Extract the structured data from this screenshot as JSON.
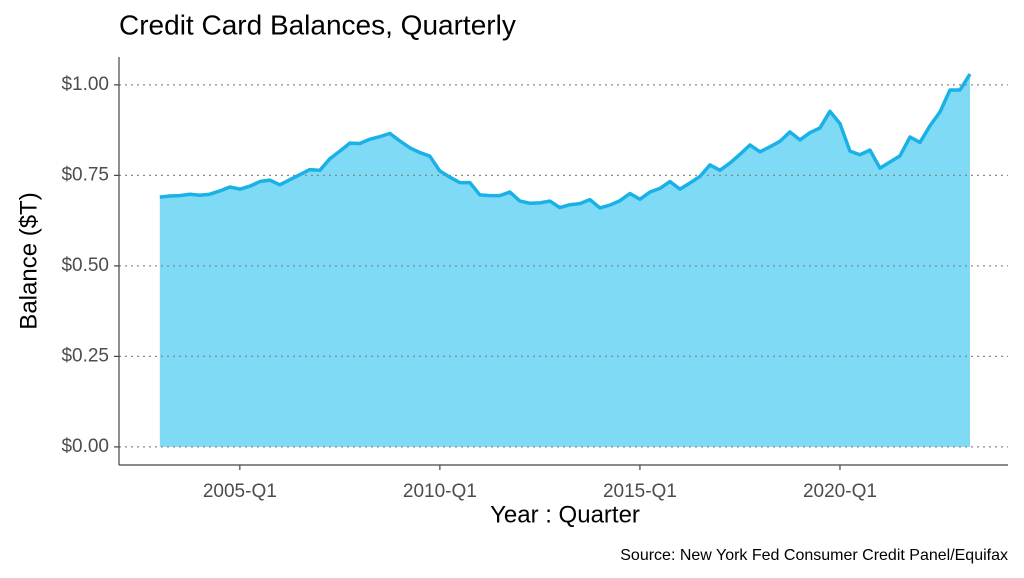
{
  "chart_data": {
    "type": "area",
    "title": "Credit Card Balances, Quarterly",
    "x_label": "Year : Quarter",
    "y_label": "Balance ($T)",
    "source": "Source: New York Fed Consumer Credit Panel/Equifax",
    "x": [
      2003,
      2003.25,
      2003.5,
      2003.75,
      2004,
      2004.25,
      2004.5,
      2004.75,
      2005,
      2005.25,
      2005.5,
      2005.75,
      2006,
      2006.25,
      2006.5,
      2006.75,
      2007,
      2007.25,
      2007.5,
      2007.75,
      2008,
      2008.25,
      2008.5,
      2008.75,
      2009,
      2009.25,
      2009.5,
      2009.75,
      2010,
      2010.25,
      2010.5,
      2010.75,
      2011,
      2011.25,
      2011.5,
      2011.75,
      2012,
      2012.25,
      2012.5,
      2012.75,
      2013,
      2013.25,
      2013.5,
      2013.75,
      2014,
      2014.25,
      2014.5,
      2014.75,
      2015,
      2015.25,
      2015.5,
      2015.75,
      2016,
      2016.25,
      2016.5,
      2016.75,
      2017,
      2017.25,
      2017.5,
      2017.75,
      2018,
      2018.25,
      2018.5,
      2018.75,
      2019,
      2019.25,
      2019.5,
      2019.75,
      2020,
      2020.25,
      2020.5,
      2020.75,
      2021,
      2021.25,
      2021.5,
      2021.75,
      2022,
      2022.25,
      2022.5,
      2022.75,
      2023,
      2023.25
    ],
    "values": [
      0.69,
      0.693,
      0.694,
      0.698,
      0.695,
      0.698,
      0.707,
      0.718,
      0.712,
      0.72,
      0.733,
      0.737,
      0.724,
      0.738,
      0.752,
      0.766,
      0.764,
      0.796,
      0.817,
      0.839,
      0.838,
      0.85,
      0.857,
      0.866,
      0.845,
      0.826,
      0.813,
      0.803,
      0.762,
      0.745,
      0.73,
      0.73,
      0.696,
      0.694,
      0.694,
      0.704,
      0.679,
      0.673,
      0.674,
      0.679,
      0.661,
      0.669,
      0.672,
      0.683,
      0.66,
      0.668,
      0.68,
      0.7,
      0.684,
      0.704,
      0.714,
      0.733,
      0.712,
      0.729,
      0.747,
      0.779,
      0.764,
      0.784,
      0.808,
      0.834,
      0.815,
      0.829,
      0.844,
      0.87,
      0.848,
      0.868,
      0.881,
      0.927,
      0.893,
      0.817,
      0.807,
      0.82,
      0.77,
      0.787,
      0.804,
      0.856,
      0.841,
      0.887,
      0.925,
      0.986,
      0.986,
      1.03
    ],
    "color": "#1ab2e6",
    "fill_color": "#7fdaf5",
    "xlim": [
      2001.98,
      2024.2
    ],
    "xticks": [
      {
        "value": 2005,
        "label": "2005-Q1"
      },
      {
        "value": 2010,
        "label": "2010-Q1"
      },
      {
        "value": 2015,
        "label": "2015-Q1"
      },
      {
        "value": 2020,
        "label": "2020-Q1"
      }
    ],
    "ylim": [
      -0.05,
      1.077
    ],
    "yticks": [
      {
        "value": 0,
        "label": "$0.00"
      },
      {
        "value": 0.25,
        "label": "$0.25"
      },
      {
        "value": 0.5,
        "label": "$0.50"
      },
      {
        "value": 0.75,
        "label": "$0.75"
      },
      {
        "value": 1,
        "label": "$1.00"
      }
    ],
    "grid": true
  }
}
